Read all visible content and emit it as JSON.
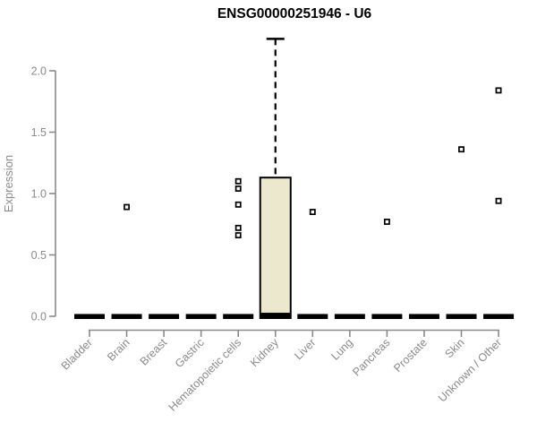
{
  "chart_data": {
    "type": "boxplot",
    "title": "ENSG00000251946 - U6",
    "xlabel": "",
    "ylabel": "Expression",
    "yticks": [
      0.0,
      0.5,
      1.0,
      1.5,
      2.0
    ],
    "ylim": [
      0.0,
      2.27
    ],
    "grid": false,
    "legend": false,
    "categories": [
      "Bladder",
      "Brain",
      "Breast",
      "Gastric",
      "Hematopoietic cells",
      "Kidney",
      "Liver",
      "Lung",
      "Pancreas",
      "Prostate",
      "Skin",
      "Unknown / Other"
    ],
    "boxes": [
      {
        "category": "Bladder",
        "whisker_low": 0,
        "q1": 0,
        "median": 0.01,
        "q3": 0.02,
        "whisker_high": 0.02,
        "outliers": []
      },
      {
        "category": "Brain",
        "whisker_low": 0,
        "q1": 0,
        "median": 0.01,
        "q3": 0.02,
        "whisker_high": 0.02,
        "outliers": [
          0.89
        ]
      },
      {
        "category": "Breast",
        "whisker_low": 0,
        "q1": 0,
        "median": 0.01,
        "q3": 0.02,
        "whisker_high": 0.02,
        "outliers": []
      },
      {
        "category": "Gastric",
        "whisker_low": 0,
        "q1": 0,
        "median": 0.01,
        "q3": 0.02,
        "whisker_high": 0.02,
        "outliers": []
      },
      {
        "category": "Hematopoietic cells",
        "whisker_low": 0,
        "q1": 0,
        "median": 0.01,
        "q3": 0.02,
        "whisker_high": 0.02,
        "outliers": [
          0.66,
          0.72,
          0.91,
          1.04,
          1.1
        ]
      },
      {
        "category": "Kidney",
        "whisker_low": 0,
        "q1": 0.01,
        "median": 0.02,
        "q3": 1.13,
        "whisker_high": 2.26,
        "outliers": []
      },
      {
        "category": "Liver",
        "whisker_low": 0,
        "q1": 0,
        "median": 0.01,
        "q3": 0.02,
        "whisker_high": 0.02,
        "outliers": [
          0.85
        ]
      },
      {
        "category": "Lung",
        "whisker_low": 0,
        "q1": 0,
        "median": 0.01,
        "q3": 0.02,
        "whisker_high": 0.02,
        "outliers": []
      },
      {
        "category": "Pancreas",
        "whisker_low": 0,
        "q1": 0,
        "median": 0.01,
        "q3": 0.02,
        "whisker_high": 0.02,
        "outliers": [
          0.77
        ]
      },
      {
        "category": "Prostate",
        "whisker_low": 0,
        "q1": 0,
        "median": 0.01,
        "q3": 0.02,
        "whisker_high": 0.02,
        "outliers": []
      },
      {
        "category": "Skin",
        "whisker_low": 0,
        "q1": 0,
        "median": 0.01,
        "q3": 0.02,
        "whisker_high": 0.02,
        "outliers": [
          1.36
        ]
      },
      {
        "category": "Unknown / Other",
        "whisker_low": 0,
        "q1": 0,
        "median": 0.01,
        "q3": 0.02,
        "whisker_high": 0.02,
        "outliers": [
          0.94,
          1.84
        ]
      }
    ],
    "colors": {
      "box_fill": "#ece8cd",
      "box_border": "#000000",
      "marker": "#000000",
      "axis": "#8a8a8a",
      "tick_label": "#8a8a8a",
      "title": "#000000",
      "background": "#ffffff"
    }
  }
}
